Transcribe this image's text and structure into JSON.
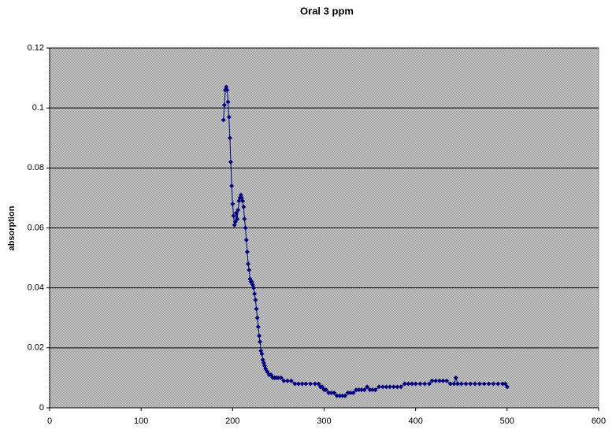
{
  "chart_data": {
    "type": "scatter",
    "title": "Oral 3 ppm",
    "ylabel": "absorption",
    "xlim": [
      0,
      600
    ],
    "xticks": [
      0,
      100,
      200,
      300,
      400,
      500,
      600
    ],
    "ylim": [
      0,
      0.12
    ],
    "yticks": [
      0,
      0.02,
      0.04,
      0.06,
      0.08,
      0.1,
      0.12
    ],
    "grid": true,
    "line": true,
    "series": [
      {
        "color": "#000080",
        "x": [
          190,
          191,
          192,
          193,
          194,
          195,
          196,
          197,
          198,
          199,
          200,
          201,
          202,
          203,
          204,
          205,
          206,
          207,
          208,
          209,
          210,
          211,
          212,
          213,
          214,
          215,
          216,
          217,
          218,
          219,
          220,
          221,
          222,
          223,
          224,
          225,
          226,
          227,
          228,
          229,
          230,
          231,
          232,
          233,
          234,
          235,
          236,
          238,
          240,
          242,
          244,
          246,
          248,
          250,
          253,
          256,
          260,
          264,
          268,
          272,
          276,
          280,
          285,
          290,
          294,
          296,
          298,
          300,
          302,
          305,
          308,
          311,
          314,
          317,
          320,
          323,
          326,
          329,
          332,
          335,
          338,
          341,
          344,
          347,
          350,
          353,
          356,
          360,
          364,
          368,
          372,
          376,
          380,
          384,
          388,
          392,
          396,
          400,
          405,
          410,
          415,
          418,
          422,
          426,
          430,
          434,
          438,
          442,
          444,
          446,
          450,
          455,
          460,
          465,
          470,
          475,
          480,
          485,
          490,
          495,
          498,
          500
        ],
        "values": [
          0.096,
          0.101,
          0.106,
          0.107,
          0.106,
          0.102,
          0.097,
          0.09,
          0.082,
          0.074,
          0.068,
          0.064,
          0.061,
          0.062,
          0.065,
          0.063,
          0.066,
          0.069,
          0.07,
          0.071,
          0.07,
          0.069,
          0.067,
          0.063,
          0.06,
          0.056,
          0.052,
          0.048,
          0.046,
          0.043,
          0.042,
          0.042,
          0.041,
          0.04,
          0.038,
          0.036,
          0.033,
          0.03,
          0.027,
          0.024,
          0.022,
          0.019,
          0.018,
          0.016,
          0.015,
          0.014,
          0.013,
          0.012,
          0.011,
          0.011,
          0.01,
          0.01,
          0.01,
          0.01,
          0.01,
          0.009,
          0.009,
          0.009,
          0.008,
          0.008,
          0.008,
          0.008,
          0.008,
          0.008,
          0.008,
          0.007,
          0.007,
          0.006,
          0.006,
          0.005,
          0.005,
          0.005,
          0.004,
          0.004,
          0.004,
          0.004,
          0.005,
          0.005,
          0.005,
          0.006,
          0.006,
          0.006,
          0.006,
          0.007,
          0.006,
          0.006,
          0.006,
          0.007,
          0.007,
          0.007,
          0.007,
          0.007,
          0.007,
          0.007,
          0.008,
          0.008,
          0.008,
          0.008,
          0.008,
          0.008,
          0.008,
          0.009,
          0.009,
          0.009,
          0.009,
          0.009,
          0.008,
          0.008,
          0.01,
          0.008,
          0.008,
          0.008,
          0.008,
          0.008,
          0.008,
          0.008,
          0.008,
          0.008,
          0.008,
          0.008,
          0.008,
          0.007
        ]
      }
    ]
  }
}
